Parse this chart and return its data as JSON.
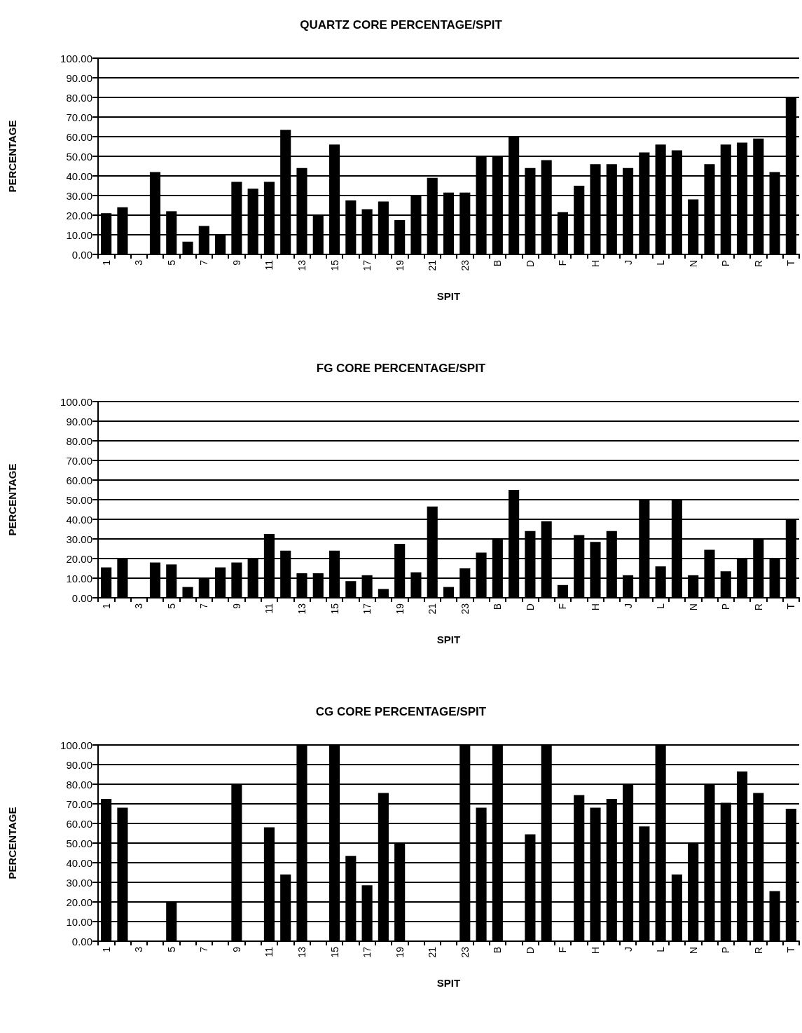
{
  "chart_data": [
    {
      "type": "bar",
      "title": "QUARTZ CORE PERCENTAGE/SPIT",
      "xlabel": "SPIT",
      "ylabel": "PERCENTAGE",
      "categories": [
        "1",
        null,
        "3",
        null,
        "5",
        null,
        "7",
        null,
        "9",
        null,
        "11",
        null,
        "13",
        null,
        "15",
        null,
        "17",
        null,
        "19",
        null,
        "21",
        null,
        "23",
        null,
        "B",
        null,
        "D",
        null,
        "F",
        null,
        "H",
        null,
        "J",
        null,
        "L",
        null,
        "N",
        null,
        "P",
        null,
        "R",
        null,
        "T"
      ],
      "values": [
        21,
        24,
        0,
        42,
        22,
        6.5,
        14.5,
        10,
        37,
        33.5,
        37,
        63.5,
        44,
        20,
        56,
        27.5,
        23,
        27,
        17.5,
        30,
        39,
        31.5,
        31.5,
        50,
        50,
        60,
        44,
        48,
        21.5,
        35,
        46,
        46,
        44,
        52,
        56,
        53,
        28,
        46,
        56,
        57,
        59,
        42,
        80
      ],
      "color": "#000000",
      "ylim": [
        0,
        100
      ],
      "yticks": [
        {
          "value": 0,
          "label": "0.00"
        },
        {
          "value": 10,
          "label": "10.00"
        },
        {
          "value": 20,
          "label": "20.00"
        },
        {
          "value": 30,
          "label": "30.00"
        },
        {
          "value": 40,
          "label": "40.00"
        },
        {
          "value": 50,
          "label": "50.00"
        },
        {
          "value": 60,
          "label": "60.00"
        },
        {
          "value": 70,
          "label": "70.00"
        },
        {
          "value": 80,
          "label": "80.00"
        },
        {
          "value": 90,
          "label": "90.00"
        },
        {
          "value": 100,
          "label": "100.00"
        }
      ],
      "grid": "y"
    },
    {
      "type": "bar",
      "title": "FG CORE PERCENTAGE/SPIT",
      "xlabel": "SPIT",
      "ylabel": "PERCENTAGE",
      "categories": [
        "1",
        null,
        "3",
        null,
        "5",
        null,
        "7",
        null,
        "9",
        null,
        "11",
        null,
        "13",
        null,
        "15",
        null,
        "17",
        null,
        "19",
        null,
        "21",
        null,
        "23",
        null,
        "B",
        null,
        "D",
        null,
        "F",
        null,
        "H",
        null,
        "J",
        null,
        "L",
        null,
        "N",
        null,
        "P",
        null,
        "R",
        null,
        "T"
      ],
      "values": [
        15.5,
        20,
        0,
        18,
        17,
        5.5,
        10,
        15.5,
        18,
        20,
        32.5,
        24,
        12.5,
        12.5,
        24,
        8.5,
        11.5,
        4.5,
        27.5,
        13,
        46.5,
        5.5,
        15,
        23,
        30,
        55,
        34,
        39,
        6.5,
        32,
        28.5,
        34,
        11.5,
        50,
        16,
        50,
        11.5,
        24.5,
        13.5,
        20,
        30,
        20,
        40
      ],
      "color": "#000000",
      "ylim": [
        0,
        100
      ],
      "yticks": [
        {
          "value": 0,
          "label": "0.00"
        },
        {
          "value": 10,
          "label": "10.00"
        },
        {
          "value": 20,
          "label": "20.00"
        },
        {
          "value": 30,
          "label": "30.00"
        },
        {
          "value": 40,
          "label": "40.00"
        },
        {
          "value": 50,
          "label": "50.00"
        },
        {
          "value": 60,
          "label": "60.00"
        },
        {
          "value": 70,
          "label": "70.00"
        },
        {
          "value": 80,
          "label": "80.00"
        },
        {
          "value": 90,
          "label": "90.00"
        },
        {
          "value": 100,
          "label": "100.00"
        }
      ],
      "grid": "y"
    },
    {
      "type": "bar",
      "title": "CG CORE PERCENTAGE/SPIT",
      "xlabel": "SPIT",
      "ylabel": "PERCENTAGE",
      "categories": [
        "1",
        null,
        "3",
        null,
        "5",
        null,
        "7",
        null,
        "9",
        null,
        "11",
        null,
        "13",
        null,
        "15",
        null,
        "17",
        null,
        "19",
        null,
        "21",
        null,
        "23",
        null,
        "B",
        null,
        "D",
        null,
        "F",
        null,
        "H",
        null,
        "J",
        null,
        "L",
        null,
        "N",
        null,
        "P",
        null,
        "R",
        null,
        "T"
      ],
      "values": [
        72.5,
        68,
        0,
        0,
        20,
        0,
        0,
        0,
        80,
        0,
        58,
        34,
        100,
        0,
        100,
        43.5,
        28.5,
        75.5,
        50,
        0,
        0,
        0,
        100,
        68,
        100,
        0,
        54.5,
        100,
        0,
        74.5,
        68,
        72.5,
        80,
        58.5,
        100,
        34,
        50,
        80,
        70.5,
        86.5,
        75.5,
        25.5,
        67.5
      ],
      "color": "#000000",
      "ylim": [
        0,
        100
      ],
      "yticks": [
        {
          "value": 0,
          "label": "0.00"
        },
        {
          "value": 10,
          "label": "10.00"
        },
        {
          "value": 20,
          "label": "20.00"
        },
        {
          "value": 30,
          "label": "30.00"
        },
        {
          "value": 40,
          "label": "40.00"
        },
        {
          "value": 50,
          "label": "50.00"
        },
        {
          "value": 60,
          "label": "60.00"
        },
        {
          "value": 70,
          "label": "70.00"
        },
        {
          "value": 80,
          "label": "80.00"
        },
        {
          "value": 90,
          "label": "90.00"
        },
        {
          "value": 100,
          "label": "100.00"
        }
      ],
      "grid": "y"
    }
  ]
}
